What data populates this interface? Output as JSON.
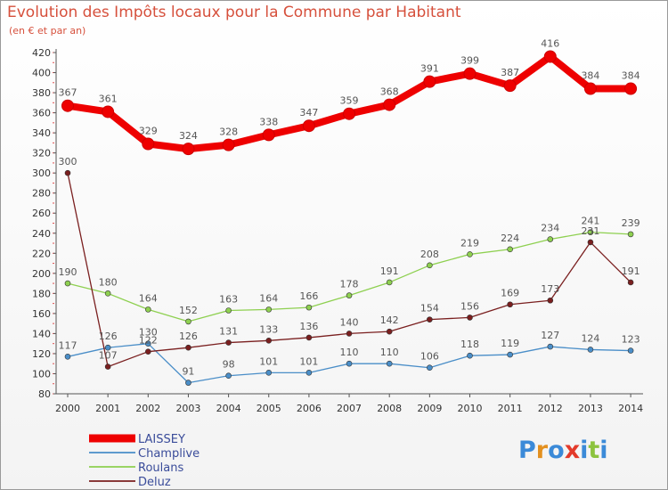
{
  "title": "Evolution des Impôts locaux pour la Commune par Habitant",
  "subtitle": "(en € et par an)",
  "logo": {
    "text": "Proxiti",
    "colors": [
      "#3b8ad8",
      "#e3901f",
      "#3b8ad8",
      "#e33a2a",
      "#3b8ad8",
      "#8cc33e",
      "#3b8ad8"
    ]
  },
  "chart_data": {
    "type": "line",
    "title": "Evolution des Impôts locaux pour la Commune par Habitant",
    "subtitle": "(en € et par an)",
    "xlabel": "",
    "ylabel": "",
    "ylim": [
      80,
      420
    ],
    "yticks": [
      80,
      100,
      120,
      140,
      160,
      180,
      200,
      220,
      240,
      260,
      280,
      300,
      320,
      340,
      360,
      380,
      400,
      420
    ],
    "grid": false,
    "legend_position": "bottom-left",
    "categories": [
      "2000",
      "2001",
      "2002",
      "2003",
      "2004",
      "2005",
      "2006",
      "2007",
      "2008",
      "2009",
      "2010",
      "2011",
      "2012",
      "2013",
      "2014"
    ],
    "series": [
      {
        "name": "LAISSEY",
        "color": "#ee0000",
        "thick": true,
        "values": [
          367,
          361,
          329,
          324,
          328,
          338,
          347,
          359,
          368,
          391,
          399,
          387,
          416,
          384,
          384
        ]
      },
      {
        "name": "Champlive",
        "color": "#4a8ec8",
        "thick": false,
        "values": [
          117,
          126,
          130,
          91,
          98,
          101,
          101,
          110,
          110,
          106,
          118,
          119,
          127,
          124,
          123
        ]
      },
      {
        "name": "Roulans",
        "color": "#8ed050",
        "thick": false,
        "values": [
          190,
          180,
          164,
          152,
          163,
          164,
          166,
          178,
          191,
          208,
          219,
          224,
          234,
          241,
          239
        ]
      },
      {
        "name": "Deluz",
        "color": "#7a1f1f",
        "thick": false,
        "values": [
          300,
          107,
          122,
          126,
          131,
          133,
          136,
          140,
          142,
          154,
          156,
          169,
          173,
          231,
          191
        ]
      }
    ]
  }
}
